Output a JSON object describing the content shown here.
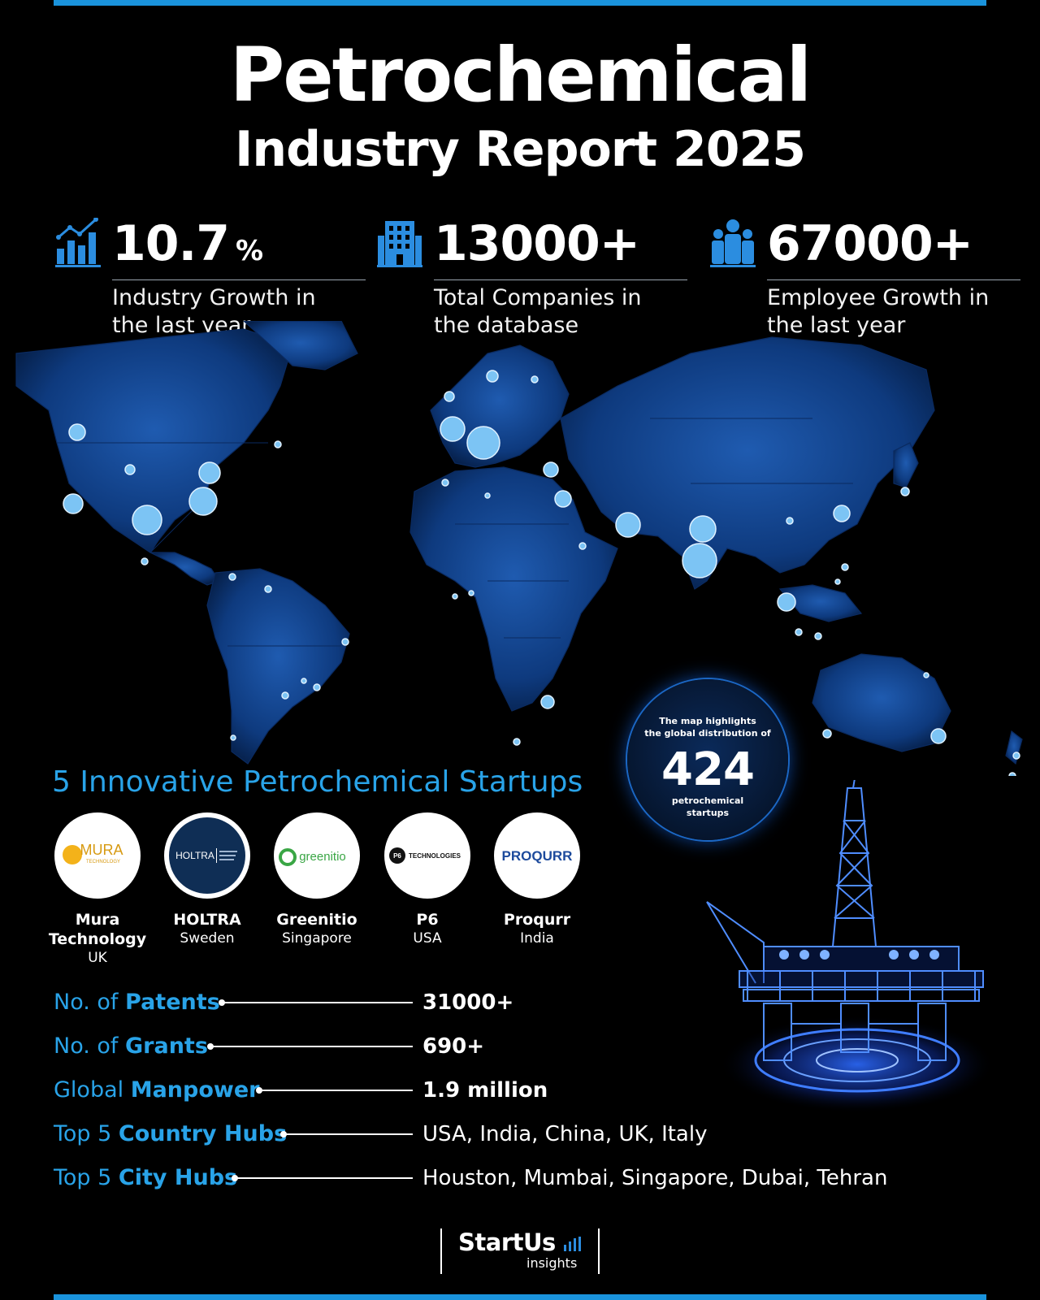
{
  "title": {
    "line1": "Petrochemical",
    "line2": "Industry Report 2025"
  },
  "stats": [
    {
      "icon": "bar-chart-growth-icon",
      "value": "10.7",
      "unit": "%",
      "desc_line1": "Industry Growth in",
      "desc_line2": "the last year"
    },
    {
      "icon": "building-icon",
      "value": "13000+",
      "unit": "",
      "desc_line1": "Total Companies in",
      "desc_line2": "the database"
    },
    {
      "icon": "people-group-icon",
      "value": "67000+",
      "unit": "",
      "desc_line1": "Employee Growth in",
      "desc_line2": "the last year"
    }
  ],
  "badge": {
    "line1": "The map highlights",
    "line2": "the global distribution of",
    "number": "424",
    "line3": "petrochemical",
    "line4": "startups"
  },
  "startups_title": "5 Innovative Petrochemical Startups",
  "startups": [
    {
      "name": "Mura",
      "name2": "Technology",
      "country": "UK",
      "logo_text": "MURA",
      "logo_sub": "TECHNOLOGY"
    },
    {
      "name": "HOLTRA",
      "name2": "",
      "country": "Sweden",
      "logo_text": "HOLTRA"
    },
    {
      "name": "Greenitio",
      "name2": "",
      "country": "Singapore",
      "logo_text": "greenitio"
    },
    {
      "name": "P6",
      "name2": "",
      "country": "USA",
      "logo_text": "TECHNOLOGIES",
      "logo_badge": "P6"
    },
    {
      "name": "Proqurr",
      "name2": "",
      "country": "India",
      "logo_text": "PROQURR"
    }
  ],
  "facts": [
    {
      "prefix": "No. of ",
      "bold": "Patents",
      "value": "31000+"
    },
    {
      "prefix": "No. of ",
      "bold": "Grants",
      "value": "690+"
    },
    {
      "prefix": "Global ",
      "bold": "Manpower",
      "value": "1.9 million"
    },
    {
      "prefix": "Top 5 ",
      "bold": "Country Hubs",
      "value": "USA, India, China, UK, Italy"
    },
    {
      "prefix": "Top 5 ",
      "bold": "City Hubs",
      "value": "Houston, Mumbai, Singapore, Dubai, Tehran"
    }
  ],
  "footer": {
    "brand": "StartUs",
    "sub": "insights"
  },
  "colors": {
    "accent": "#1a93dc",
    "map_fill": "#0f3f86",
    "dot": "#7cc4f4"
  }
}
